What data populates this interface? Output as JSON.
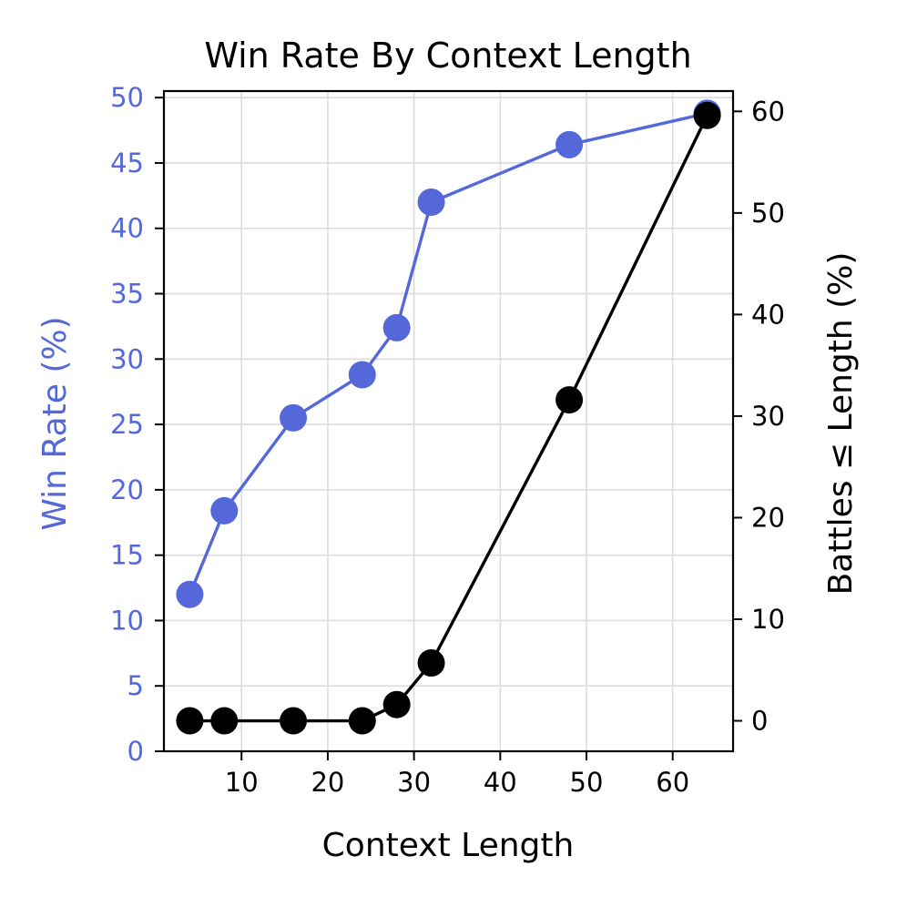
{
  "chart_data": {
    "type": "line",
    "title": "Win Rate By Context Length",
    "xlabel": "Context Length",
    "ylabel": "Win Rate (%)",
    "y2label": "Battles ≤ Length (%)",
    "x": [
      4,
      8,
      16,
      24,
      28,
      32,
      48,
      64
    ],
    "xlim": [
      1,
      67
    ],
    "ylim": [
      0,
      50.5
    ],
    "y2lim": [
      -3,
      62
    ],
    "xticks": [
      10,
      20,
      30,
      40,
      50,
      60
    ],
    "yticks": [
      0,
      5,
      10,
      15,
      20,
      25,
      30,
      35,
      40,
      45,
      50
    ],
    "y2ticks": [
      0,
      10,
      20,
      30,
      40,
      50,
      60
    ],
    "grid": true,
    "series": [
      {
        "name": "Win Rate (%)",
        "axis": "left",
        "color": "#5468d9",
        "values": [
          12.0,
          18.4,
          25.5,
          28.8,
          32.4,
          42.0,
          46.4,
          48.8
        ]
      },
      {
        "name": "Battles ≤ Length (%)",
        "axis": "right",
        "color": "#000000",
        "values": [
          0.0,
          0.0,
          0.0,
          0.0,
          1.6,
          5.7,
          31.6,
          59.6
        ]
      }
    ]
  }
}
